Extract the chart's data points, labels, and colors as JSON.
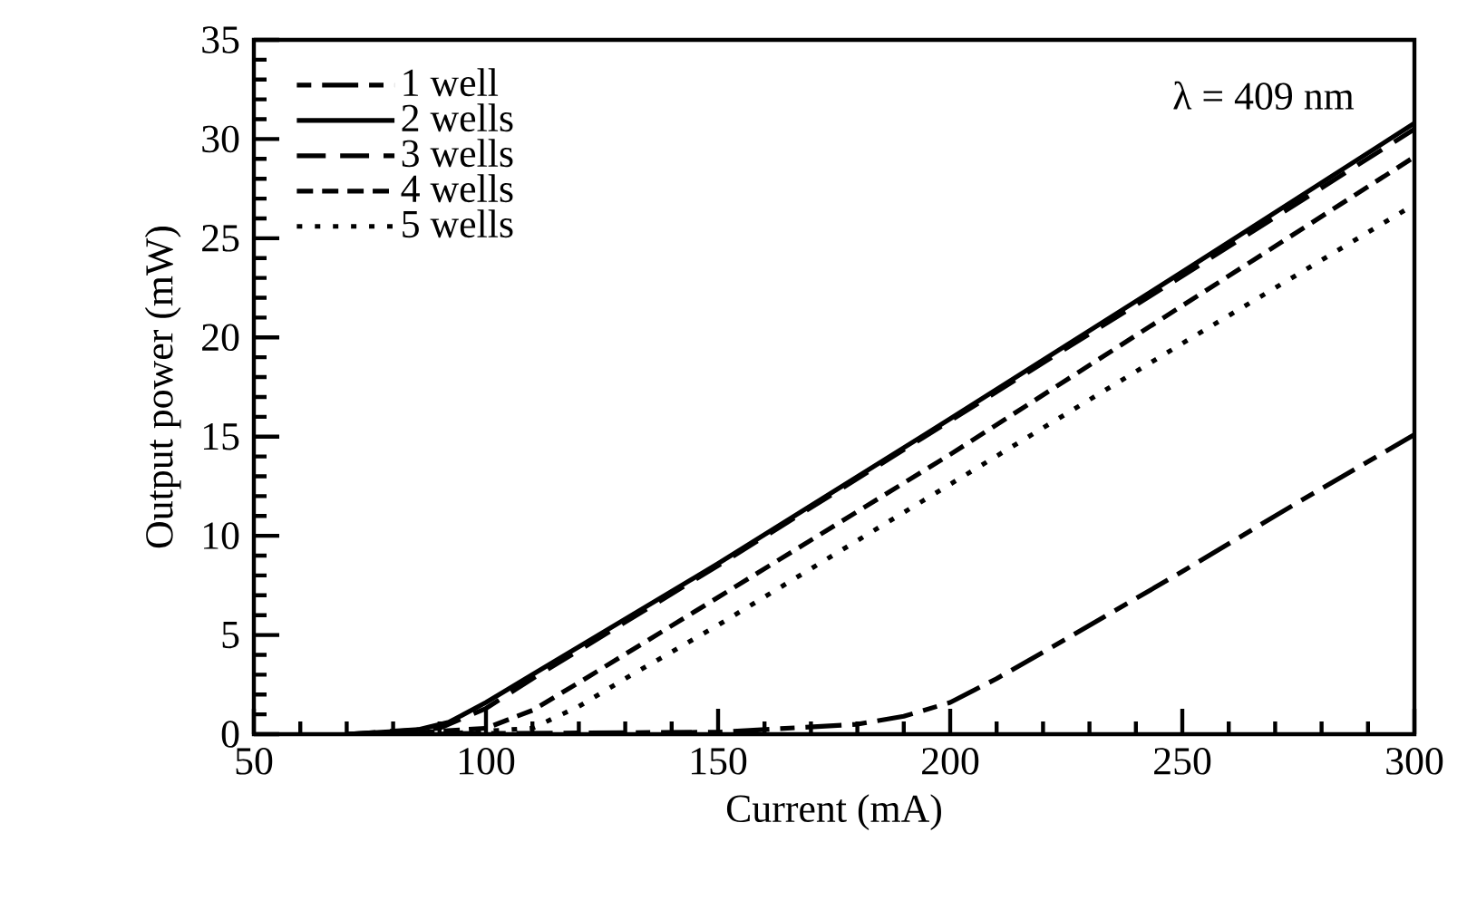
{
  "chart_data": {
    "type": "line",
    "xlabel": "Current (mA)",
    "ylabel": "Output power (mW)",
    "xlim": [
      50,
      300
    ],
    "xticks": [
      50,
      100,
      150,
      200,
      250,
      300
    ],
    "ylim": [
      0,
      35
    ],
    "yticks": [
      0,
      5,
      10,
      15,
      20,
      25,
      30,
      35
    ],
    "grid": false,
    "legend": "top left",
    "marker": "none",
    "annotations": [
      "λ = 409 nm"
    ],
    "series": [
      {
        "name": "1 well",
        "color": "#000000",
        "line_style": "dashdot",
        "x": [
          70,
          150,
          180,
          190,
          200,
          210,
          225,
          250,
          275,
          300
        ],
        "values": [
          0,
          0.1,
          0.5,
          0.9,
          1.6,
          2.8,
          4.8,
          8.2,
          11.7,
          15.1
        ]
      },
      {
        "name": "2 wells",
        "color": "#000000",
        "line_style": "solid",
        "x": [
          70,
          85,
          92,
          100,
          110,
          150,
          200,
          250,
          300
        ],
        "values": [
          0,
          0.2,
          0.6,
          1.6,
          3.0,
          8.6,
          15.9,
          23.3,
          30.8
        ]
      },
      {
        "name": "3 wells",
        "color": "#000000",
        "line_style": "long dashed",
        "x": [
          70,
          90,
          100,
          110,
          150,
          200,
          250,
          300
        ],
        "values": [
          0,
          0.3,
          1.3,
          2.8,
          8.5,
          15.8,
          23.1,
          30.5
        ]
      },
      {
        "name": "4 wells",
        "color": "#000000",
        "line_style": "dashed",
        "x": [
          80,
          100,
          110,
          120,
          150,
          200,
          250,
          300
        ],
        "values": [
          0,
          0.3,
          1.2,
          2.6,
          6.9,
          14.1,
          21.6,
          29.1
        ]
      },
      {
        "name": "5 wells",
        "color": "#000000",
        "line_style": "dotted",
        "x": [
          90,
          110,
          120,
          130,
          150,
          200,
          250,
          300
        ],
        "values": [
          0,
          0.3,
          1.4,
          2.8,
          5.5,
          12.6,
          19.7,
          26.7
        ]
      }
    ]
  }
}
